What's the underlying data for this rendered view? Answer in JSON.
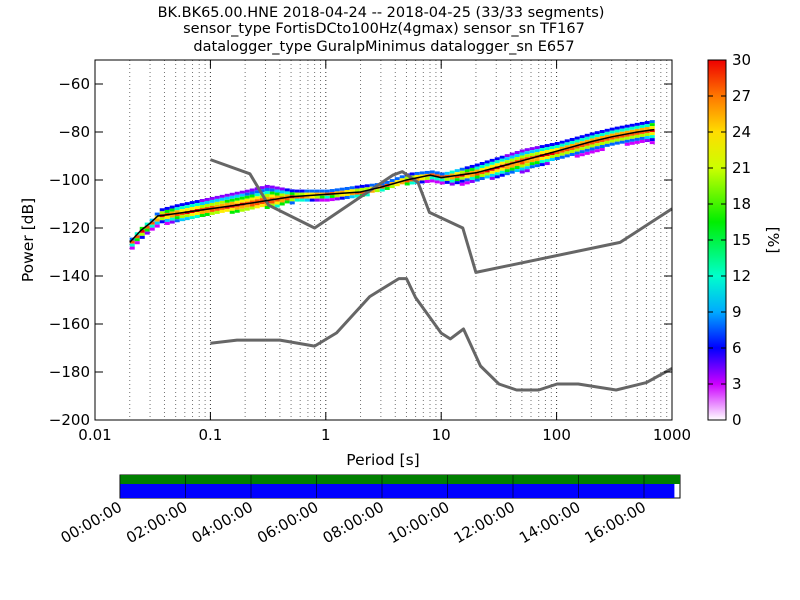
{
  "chart_data": {
    "type": "heatmap",
    "title_lines": [
      "BK.BK65.00.HNE   2018-04-24 -- 2018-04-25  (33/33 segments)",
      "sensor_type FortisDCto100Hz(4gmax) sensor_sn TF167",
      "datalogger_type GuralpMinimus datalogger_sn E657"
    ],
    "xlabel": "Period [s]",
    "ylabel": "Power [dB]",
    "x_scale": "log",
    "xlim": [
      0.01,
      1000
    ],
    "ylim": [
      -200,
      -50
    ],
    "x_ticks": [
      0.01,
      0.1,
      1,
      10,
      100,
      1000
    ],
    "x_tick_labels": [
      "0.01",
      "0.1",
      "1",
      "10",
      "100",
      "1000"
    ],
    "y_ticks": [
      -200,
      -180,
      -160,
      -140,
      -120,
      -100,
      -80,
      -60
    ],
    "y_tick_labels": [
      "−200",
      "−180",
      "−160",
      "−140",
      "−120",
      "−100",
      "−80",
      "−60"
    ],
    "grid": "vertical dotted",
    "colorbar": {
      "label": "[%]",
      "range": [
        0,
        30
      ],
      "ticks": [
        0,
        3,
        6,
        9,
        12,
        15,
        18,
        21,
        24,
        27,
        30
      ],
      "colormap": "pqlx"
    },
    "median_curve": {
      "name": "median",
      "x": [
        0.02,
        0.025,
        0.03,
        0.035,
        0.05,
        0.1,
        0.2,
        0.5,
        1,
        2,
        3,
        5,
        8,
        10,
        20,
        50,
        100,
        200,
        300,
        500,
        700
      ],
      "y": [
        -126,
        -121,
        -118,
        -115,
        -114,
        -112,
        -110,
        -107,
        -106,
        -105,
        -103,
        -100,
        -98,
        -99,
        -97,
        -92,
        -88,
        -84,
        -82,
        -80,
        -79
      ]
    },
    "noise_models": [
      {
        "name": "NHNM",
        "x": [
          0.1,
          0.22,
          0.32,
          0.8,
          3.8,
          4.6,
          6.3,
          7.9,
          15.4,
          20,
          354.8,
          1000
        ],
        "y": [
          -91.5,
          -97.4,
          -110.5,
          -120,
          -98,
          -96.5,
          -101,
          -113.5,
          -120,
          -138.5,
          -126,
          -112
        ]
      },
      {
        "name": "NLNM",
        "x": [
          0.1,
          0.17,
          0.4,
          0.8,
          1.24,
          2.4,
          4.3,
          5,
          6,
          10,
          12,
          15.6,
          21.9,
          31.6,
          45,
          70,
          101,
          154,
          328,
          600,
          1000
        ],
        "y": [
          -168,
          -166.7,
          -166.7,
          -169.2,
          -163.7,
          -148.6,
          -141.1,
          -141.1,
          -149,
          -163.8,
          -166.2,
          -162.1,
          -177.5,
          -185,
          -187.5,
          -187.5,
          -185,
          -185,
          -187.5,
          -184.4,
          -178.5
        ]
      }
    ],
    "density_band": {
      "x": [
        0.02,
        0.025,
        0.03,
        0.035,
        0.05,
        0.1,
        0.2,
        0.3,
        0.5,
        1,
        2,
        3,
        5,
        8,
        10,
        12,
        20,
        50,
        100,
        200,
        300,
        500,
        650
      ],
      "y_low": [
        -128,
        -124,
        -120,
        -118,
        -117,
        -114,
        -112,
        -111,
        -109,
        -108,
        -106,
        -104,
        -101,
        -100,
        -101,
        -102,
        -100,
        -96,
        -91,
        -88,
        -85,
        -84,
        -84
      ],
      "y_high": [
        -124,
        -119,
        -116,
        -112,
        -110,
        -107,
        -104,
        -102,
        -104,
        -104,
        -102,
        -101,
        -97,
        -96,
        -97,
        -96,
        -93,
        -87,
        -84,
        -80,
        -78,
        -76,
        -75
      ]
    },
    "timeline": {
      "tick_labels": [
        "00:00:00",
        "02:00:00",
        "04:00:00",
        "06:00:00",
        "08:00:00",
        "10:00:00",
        "12:00:00",
        "14:00:00",
        "16:00:00"
      ],
      "upper_bar_color": "#007f00",
      "lower_bar_color": "#0000ff",
      "coverage_fraction": 0.99
    }
  }
}
